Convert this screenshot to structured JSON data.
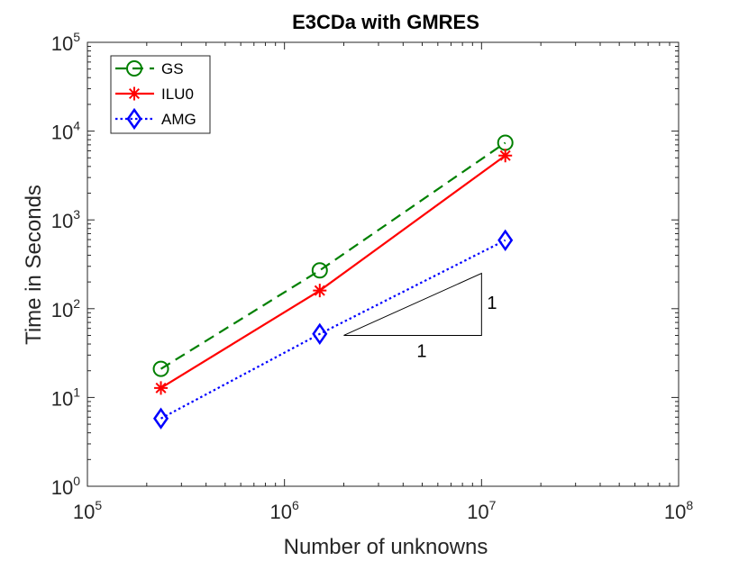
{
  "chart_data": {
    "type": "line",
    "title": "E3CDa with GMRES",
    "xlabel": "Number of unknowns",
    "ylabel": "Time in Seconds",
    "xscale": "log",
    "yscale": "log",
    "xlim": [
      100000,
      100000000
    ],
    "ylim": [
      1,
      100000
    ],
    "x_ticks": [
      {
        "value": 100000,
        "base": "10",
        "exp": "5"
      },
      {
        "value": 1000000,
        "base": "10",
        "exp": "6"
      },
      {
        "value": 10000000,
        "base": "10",
        "exp": "7"
      },
      {
        "value": 100000000,
        "base": "10",
        "exp": "8"
      }
    ],
    "y_ticks": [
      {
        "value": 1,
        "base": "10",
        "exp": "0"
      },
      {
        "value": 10,
        "base": "10",
        "exp": "1"
      },
      {
        "value": 100,
        "base": "10",
        "exp": "2"
      },
      {
        "value": 1000,
        "base": "10",
        "exp": "3"
      },
      {
        "value": 10000,
        "base": "10",
        "exp": "4"
      },
      {
        "value": 100000,
        "base": "10",
        "exp": "5"
      }
    ],
    "grid": false,
    "legend_position": "top-left",
    "series": [
      {
        "name": "GS",
        "color": "#008000",
        "line": "dashed",
        "marker": "circle",
        "x": [
          236000,
          1510000,
          13200000
        ],
        "y": [
          21,
          270,
          7400
        ]
      },
      {
        "name": "ILU0",
        "color": "#ff0000",
        "line": "solid",
        "marker": "asterisk",
        "x": [
          236000,
          1510000,
          13200000
        ],
        "y": [
          12.8,
          160,
          5300
        ]
      },
      {
        "name": "AMG",
        "color": "#0000ff",
        "line": "dotted",
        "marker": "diamond",
        "x": [
          236000,
          1510000,
          13200000
        ],
        "y": [
          5.8,
          52,
          590
        ]
      }
    ],
    "slope_triangle": {
      "x_start": 2000000,
      "x_end": 10000000,
      "y_start": 50,
      "y_end": 250,
      "horizontal_label": "1",
      "vertical_label": "1"
    }
  }
}
